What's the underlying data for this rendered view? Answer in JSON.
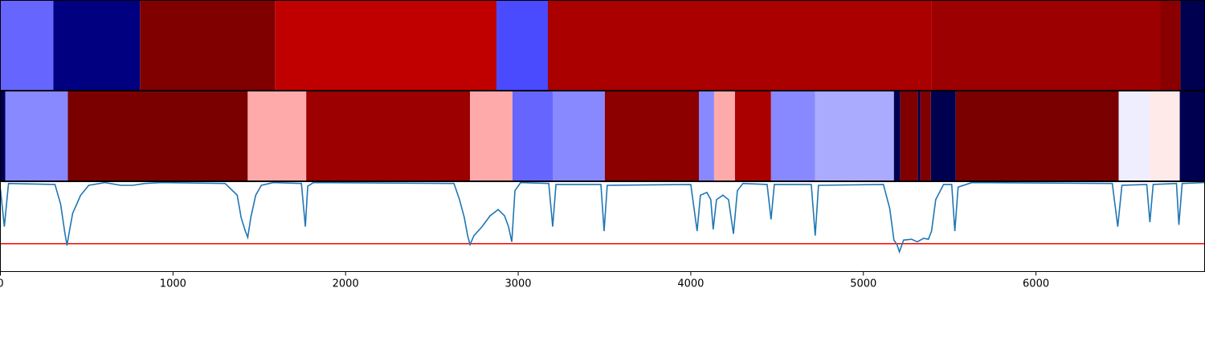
{
  "chart_data": [
    {
      "type": "segments",
      "xlim": [
        0,
        6977
      ],
      "edges": [
        0,
        307,
        809,
        1591,
        2874,
        3172,
        5395,
        6721,
        6837,
        6977
      ],
      "colors": [
        "#6666ff",
        "#000080",
        "#800000",
        "#c00000",
        "#4a4aff",
        "#aa0000",
        "#9c0000",
        "#8a0000",
        "#000050"
      ]
    },
    {
      "type": "segments",
      "xlim": [
        0,
        6977
      ],
      "edges": [
        0,
        28,
        391,
        1433,
        1772,
        2721,
        2967,
        3200,
        3502,
        4047,
        4135,
        4256,
        4465,
        4721,
        5177,
        5214,
        5316,
        5330,
        5391,
        5535,
        6479,
        6660,
        6833,
        6977
      ],
      "colors": [
        "#000050",
        "#8888ff",
        "#7a0000",
        "#ffaaaa",
        "#9c0000",
        "#ffaaaa",
        "#6666ff",
        "#8888ff",
        "#8c0000",
        "#8888ff",
        "#ffaaaa",
        "#aa0000",
        "#8888ff",
        "#aaaaff",
        "#000050",
        "#800000",
        "#000050",
        "#800000",
        "#000050",
        "#7a0000",
        "#eeeeff",
        "#ffeaea",
        "#000050"
      ]
    },
    {
      "type": "line",
      "xlim": [
        0,
        6977
      ],
      "ylim": [
        0,
        1
      ],
      "xticks": [
        0,
        1000,
        2000,
        3000,
        4000,
        5000,
        6000
      ],
      "threshold": {
        "value": 0.31,
        "color": "#ff0000"
      },
      "x": [
        0,
        23,
        47,
        316,
        349,
        372,
        386,
        400,
        419,
        442,
        465,
        512,
        605,
        698,
        767,
        837,
        930,
        1302,
        1372,
        1395,
        1419,
        1433,
        1451,
        1479,
        1512,
        1581,
        1744,
        1767,
        1781,
        1814,
        2628,
        2660,
        2688,
        2707,
        2721,
        2744,
        2791,
        2837,
        2884,
        2921,
        2944,
        2963,
        2981,
        3014,
        3177,
        3200,
        3219,
        3479,
        3498,
        3516,
        4000,
        4037,
        4056,
        4093,
        4116,
        4130,
        4149,
        4186,
        4219,
        4247,
        4270,
        4302,
        4442,
        4465,
        4484,
        4698,
        4721,
        4740,
        5116,
        5153,
        5177,
        5195,
        5209,
        5233,
        5279,
        5312,
        5349,
        5377,
        5395,
        5419,
        5465,
        5512,
        5530,
        5549,
        5628,
        6442,
        6474,
        6498,
        6642,
        6660,
        6679,
        6814,
        6828,
        6847,
        6977
      ],
      "series": [
        {
          "color": "#1f77b4",
          "values": [
            0.92,
            0.5,
            0.98,
            0.97,
            0.75,
            0.45,
            0.29,
            0.45,
            0.65,
            0.75,
            0.85,
            0.96,
            0.99,
            0.96,
            0.96,
            0.98,
            0.99,
            0.98,
            0.85,
            0.6,
            0.45,
            0.38,
            0.6,
            0.85,
            0.96,
            0.99,
            0.98,
            0.5,
            0.95,
            0.99,
            0.98,
            0.8,
            0.6,
            0.4,
            0.3,
            0.4,
            0.5,
            0.62,
            0.69,
            0.62,
            0.5,
            0.33,
            0.9,
            0.99,
            0.98,
            0.5,
            0.97,
            0.97,
            0.45,
            0.96,
            0.97,
            0.45,
            0.85,
            0.88,
            0.8,
            0.47,
            0.8,
            0.85,
            0.8,
            0.42,
            0.9,
            0.98,
            0.97,
            0.58,
            0.97,
            0.97,
            0.4,
            0.96,
            0.97,
            0.7,
            0.35,
            0.3,
            0.22,
            0.35,
            0.36,
            0.33,
            0.37,
            0.36,
            0.45,
            0.8,
            0.97,
            0.97,
            0.45,
            0.94,
            0.99,
            0.98,
            0.5,
            0.96,
            0.97,
            0.55,
            0.97,
            0.98,
            0.52,
            0.98,
            0.99
          ]
        }
      ]
    }
  ]
}
